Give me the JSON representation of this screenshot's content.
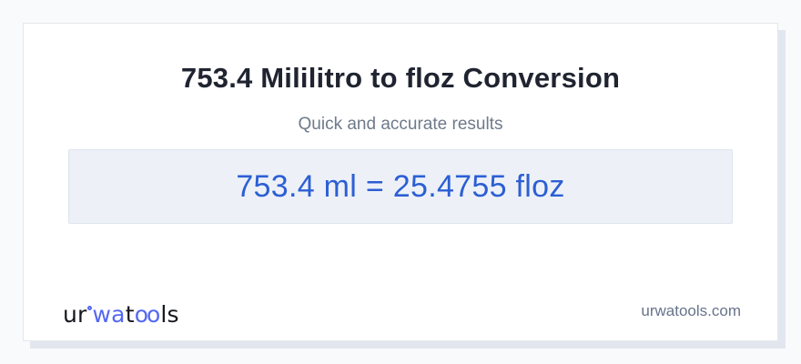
{
  "header": {
    "title": "753.4 Mililitro to floz Conversion",
    "subtitle": "Quick and accurate results"
  },
  "result": {
    "text": "753.4 ml = 25.4755 floz",
    "value_from": "753.4",
    "unit_from": "ml",
    "value_to": "25.4755",
    "unit_to": "floz"
  },
  "logo": {
    "part_ur": "ur",
    "part_wa": "wa",
    "part_t": "t",
    "part_oo": "oo",
    "part_ls": "ls",
    "degree_icon": "degree-ring"
  },
  "footer": {
    "domain_label": "urwatools.com"
  },
  "colors": {
    "page_background": "#f8fafc",
    "card_background": "#ffffff",
    "card_shadow": "#e2e7ef",
    "title_text": "#1f2430",
    "subtitle_text": "#6e7a8a",
    "result_background": "#edf1f7",
    "result_text": "#2c5fd4",
    "logo_dark": "#15171c",
    "logo_blue": "#5468f0",
    "domain_text": "#66748b"
  }
}
